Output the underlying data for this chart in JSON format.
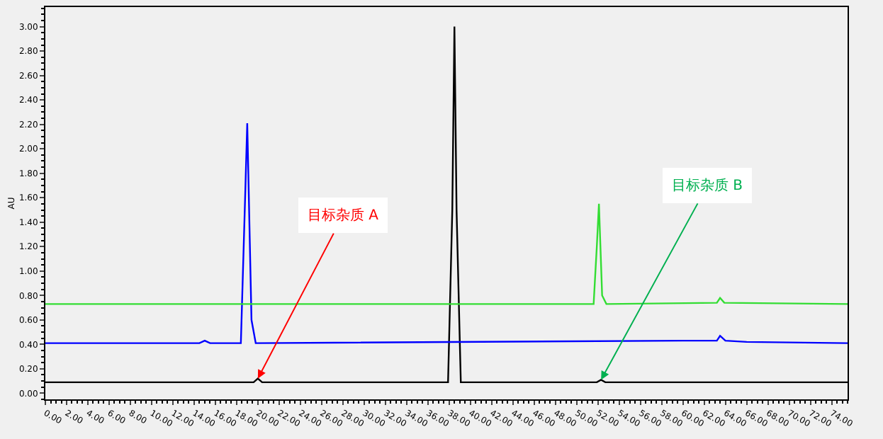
{
  "chart_data": {
    "type": "line",
    "ylabel": "AU",
    "marker": "none",
    "grid": false,
    "legend": false,
    "xlim": [
      0,
      75.5
    ],
    "ylim": [
      -0.05,
      3.16
    ],
    "xticks": [
      {
        "value": 0,
        "label": "0.00"
      },
      {
        "value": 2,
        "label": "2.00"
      },
      {
        "value": 4,
        "label": "4.00"
      },
      {
        "value": 6,
        "label": "6.00"
      },
      {
        "value": 8,
        "label": "8.00"
      },
      {
        "value": 10,
        "label": "10.00"
      },
      {
        "value": 12,
        "label": "12.00"
      },
      {
        "value": 14,
        "label": "14.00"
      },
      {
        "value": 16,
        "label": "16.00"
      },
      {
        "value": 18,
        "label": "18.00"
      },
      {
        "value": 20,
        "label": "20.00"
      },
      {
        "value": 22,
        "label": "22.00"
      },
      {
        "value": 24,
        "label": "24.00"
      },
      {
        "value": 26,
        "label": "26.00"
      },
      {
        "value": 28,
        "label": "28.00"
      },
      {
        "value": 30,
        "label": "30.00"
      },
      {
        "value": 32,
        "label": "32.00"
      },
      {
        "value": 34,
        "label": "34.00"
      },
      {
        "value": 36,
        "label": "36.00"
      },
      {
        "value": 38,
        "label": "38.00"
      },
      {
        "value": 40,
        "label": "40.00"
      },
      {
        "value": 42,
        "label": "42.00"
      },
      {
        "value": 44,
        "label": "44.00"
      },
      {
        "value": 46,
        "label": "46.00"
      },
      {
        "value": 48,
        "label": "48.00"
      },
      {
        "value": 50,
        "label": "50.00"
      },
      {
        "value": 52,
        "label": "52.00"
      },
      {
        "value": 54,
        "label": "54.00"
      },
      {
        "value": 56,
        "label": "56.00"
      },
      {
        "value": 58,
        "label": "58.00"
      },
      {
        "value": 60,
        "label": "60.00"
      },
      {
        "value": 62,
        "label": "62.00"
      },
      {
        "value": 64,
        "label": "64.00"
      },
      {
        "value": 66,
        "label": "66.00"
      },
      {
        "value": 68,
        "label": "68.00"
      },
      {
        "value": 70,
        "label": "70.00"
      },
      {
        "value": 72,
        "label": "72.00"
      },
      {
        "value": 74,
        "label": "74.00"
      }
    ],
    "yticks": [
      {
        "value": 0,
        "label": "0.00"
      },
      {
        "value": 0.2,
        "label": "0.20"
      },
      {
        "value": 0.4,
        "label": "0.40"
      },
      {
        "value": 0.6,
        "label": "0.60"
      },
      {
        "value": 0.8,
        "label": "0.80"
      },
      {
        "value": 1.0,
        "label": "1.00"
      },
      {
        "value": 1.2,
        "label": "1.20"
      },
      {
        "value": 1.4,
        "label": "1.40"
      },
      {
        "value": 1.6,
        "label": "1.60"
      },
      {
        "value": 1.8,
        "label": "1.80"
      },
      {
        "value": 2.0,
        "label": "2.00"
      },
      {
        "value": 2.2,
        "label": "2.20"
      },
      {
        "value": 2.4,
        "label": "2.40"
      },
      {
        "value": 2.6,
        "label": "2.60"
      },
      {
        "value": 2.8,
        "label": "2.80"
      },
      {
        "value": 3.0,
        "label": "3.00"
      }
    ],
    "series": [
      {
        "color": "#000000",
        "x": [
          0,
          18,
          19.6,
          20.0,
          20.4,
          37.9,
          38.3,
          38.5,
          38.7,
          39.1,
          51.9,
          52.3,
          52.7,
          75.5
        ],
        "values": [
          0.09,
          0.09,
          0.09,
          0.12,
          0.09,
          0.09,
          1.5,
          3.0,
          1.5,
          0.09,
          0.09,
          0.11,
          0.09,
          0.09
        ]
      },
      {
        "color": "#0000ff",
        "x": [
          0,
          14.5,
          15,
          15.5,
          18.4,
          18.8,
          19.0,
          19.4,
          19.8,
          60,
          63.2,
          63.5,
          64,
          66,
          75.5
        ],
        "values": [
          0.41,
          0.41,
          0.43,
          0.41,
          0.41,
          1.6,
          2.21,
          0.6,
          0.41,
          0.43,
          0.43,
          0.47,
          0.43,
          0.42,
          0.41
        ]
      },
      {
        "color": "#33dd33",
        "x": [
          0,
          51.6,
          51.9,
          52.1,
          52.4,
          52.8,
          63.2,
          63.5,
          63.9,
          75.5
        ],
        "values": [
          0.73,
          0.73,
          1.2,
          1.55,
          0.8,
          0.73,
          0.74,
          0.78,
          0.74,
          0.73
        ]
      }
    ],
    "annotations": [
      {
        "text": "目标杂质 A",
        "x": 20.0,
        "y": 0.12
      },
      {
        "text": "目标杂质 B",
        "x": 52.3,
        "y": 0.11
      }
    ]
  }
}
